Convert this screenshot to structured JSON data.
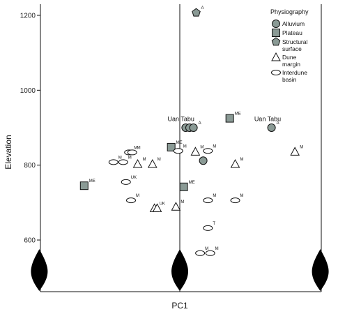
{
  "chart_data": {
    "type": "scatter",
    "title": "",
    "xlabel": "PC1",
    "ylabel": "Elevation",
    "ylim": [
      515,
      1230
    ],
    "yticks": [
      600,
      800,
      1000,
      1200
    ],
    "grid": false,
    "legend": {
      "title": "Physiography",
      "position": "top-right",
      "items": [
        {
          "key": "alluvium",
          "label": [
            "Alluvium"
          ],
          "shape": "circle",
          "fill": "#8a9a95"
        },
        {
          "key": "plateau",
          "label": [
            "Plateau"
          ],
          "shape": "square",
          "fill": "#8a9a95"
        },
        {
          "key": "structural",
          "label": [
            "Structural",
            "surface"
          ],
          "shape": "pentagon",
          "fill": "#8a9a95"
        },
        {
          "key": "dune",
          "label": [
            "Dune",
            "margin"
          ],
          "shape": "triangle",
          "fill": "none"
        },
        {
          "key": "interdune",
          "label": [
            "Interdune",
            "basin"
          ],
          "shape": "ellipse",
          "fill": "none"
        }
      ]
    },
    "annotations": [
      {
        "text": "Uan Tabu",
        "x": 0.03,
        "y": 918
      },
      {
        "text": "Uan Tabu",
        "x": 2.25,
        "y": 918
      }
    ],
    "violins": [
      {
        "x": -3.6
      },
      {
        "x": 0.0
      },
      {
        "x": 3.6
      }
    ],
    "series": [
      {
        "group": "alluvium",
        "points": [
          {
            "x": 0.15,
            "y": 900,
            "label": ""
          },
          {
            "x": 0.25,
            "y": 900,
            "label": ""
          },
          {
            "x": 0.35,
            "y": 900,
            "label": "A"
          },
          {
            "x": 0.6,
            "y": 812,
            "label": ""
          },
          {
            "x": 2.35,
            "y": 900,
            "label": "A"
          }
        ]
      },
      {
        "group": "plateau",
        "points": [
          {
            "x": -2.45,
            "y": 745,
            "label": "ME"
          },
          {
            "x": -0.22,
            "y": 848,
            "label": "ME"
          },
          {
            "x": 0.1,
            "y": 742,
            "label": "ME"
          },
          {
            "x": 1.28,
            "y": 925,
            "label": "ME"
          }
        ]
      },
      {
        "group": "structural",
        "points": [
          {
            "x": 0.42,
            "y": 1207,
            "label": "A"
          }
        ]
      },
      {
        "group": "dune",
        "points": [
          {
            "x": -1.08,
            "y": 803,
            "label": "M"
          },
          {
            "x": -0.7,
            "y": 803,
            "label": "M"
          },
          {
            "x": -0.65,
            "y": 685,
            "label": "UK"
          },
          {
            "x": -0.58,
            "y": 685,
            "label": ""
          },
          {
            "x": -0.1,
            "y": 689,
            "label": "M"
          },
          {
            "x": 0.4,
            "y": 836,
            "label": "M"
          },
          {
            "x": 1.42,
            "y": 803,
            "label": "M"
          },
          {
            "x": 2.95,
            "y": 836,
            "label": "M"
          }
        ]
      },
      {
        "group": "interdune",
        "points": [
          {
            "x": -1.7,
            "y": 808,
            "label": "M"
          },
          {
            "x": -1.45,
            "y": 808,
            "label": "M"
          },
          {
            "x": -1.3,
            "y": 834,
            "label": "M"
          },
          {
            "x": -1.22,
            "y": 834,
            "label": "M"
          },
          {
            "x": -1.38,
            "y": 755,
            "label": "UK"
          },
          {
            "x": -1.25,
            "y": 706,
            "label": "M"
          },
          {
            "x": -0.04,
            "y": 838,
            "label": "M"
          },
          {
            "x": 0.72,
            "y": 838,
            "label": "M"
          },
          {
            "x": 0.72,
            "y": 706,
            "label": "M"
          },
          {
            "x": 1.42,
            "y": 706,
            "label": "M"
          },
          {
            "x": 0.72,
            "y": 632,
            "label": "T"
          },
          {
            "x": 0.52,
            "y": 565,
            "label": "M"
          },
          {
            "x": 0.78,
            "y": 565,
            "label": "M"
          }
        ]
      }
    ]
  }
}
